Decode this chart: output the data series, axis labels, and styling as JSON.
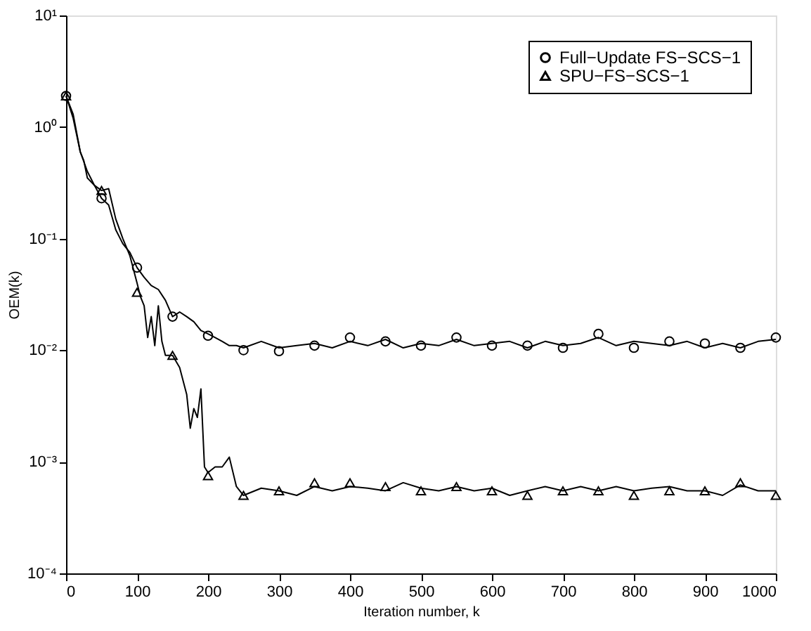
{
  "chart_data": {
    "type": "line",
    "xlabel": "Iteration number, k",
    "ylabel": "OEM(k)",
    "log": "y",
    "grid": false,
    "legend": "top right",
    "xlim": [
      0,
      1000
    ],
    "xticks": [
      0,
      100,
      200,
      300,
      400,
      500,
      600,
      700,
      800,
      900,
      1000
    ],
    "ylim": [
      0.0001,
      10
    ],
    "yticks": [
      {
        "value": 0.0001,
        "label": "10⁻⁴"
      },
      {
        "value": 0.001,
        "label": "10⁻³"
      },
      {
        "value": 0.01,
        "label": "10⁻²"
      },
      {
        "value": 0.1,
        "label": "10⁻¹"
      },
      {
        "value": 1,
        "label": "10⁰"
      },
      {
        "value": 10,
        "label": "10¹"
      }
    ],
    "series": [
      {
        "color": "#000000",
        "marker": "none",
        "x": [
          0,
          10,
          20,
          25,
          30,
          40,
          50,
          60,
          70,
          80,
          90,
          100,
          110,
          120,
          130,
          140,
          150,
          160,
          170,
          180,
          190,
          200,
          210,
          220,
          230,
          240,
          250,
          275,
          300,
          325,
          350,
          375,
          400,
          425,
          450,
          475,
          500,
          525,
          550,
          575,
          600,
          625,
          650,
          675,
          700,
          725,
          750,
          775,
          800,
          825,
          850,
          875,
          900,
          925,
          950,
          975,
          1000
        ],
        "values": [
          1.9,
          1.2,
          0.6,
          0.5,
          0.35,
          0.3,
          0.23,
          0.2,
          0.12,
          0.09,
          0.075,
          0.055,
          0.045,
          0.038,
          0.035,
          0.028,
          0.02,
          0.022,
          0.02,
          0.018,
          0.015,
          0.014,
          0.013,
          0.012,
          0.011,
          0.011,
          0.0105,
          0.012,
          0.0105,
          0.011,
          0.0115,
          0.0105,
          0.012,
          0.011,
          0.0125,
          0.0105,
          0.0115,
          0.011,
          0.0125,
          0.011,
          0.0115,
          0.012,
          0.0105,
          0.012,
          0.011,
          0.0115,
          0.013,
          0.011,
          0.012,
          0.0115,
          0.011,
          0.012,
          0.0105,
          0.0115,
          0.0105,
          0.012,
          0.0125
        ]
      },
      {
        "color": "#000000",
        "marker": "none",
        "x": [
          0,
          10,
          20,
          30,
          40,
          50,
          60,
          70,
          80,
          90,
          100,
          105,
          110,
          115,
          120,
          125,
          130,
          135,
          140,
          150,
          160,
          170,
          175,
          180,
          185,
          190,
          195,
          200,
          210,
          220,
          230,
          240,
          250,
          275,
          300,
          325,
          350,
          375,
          400,
          425,
          450,
          475,
          500,
          525,
          550,
          575,
          600,
          625,
          650,
          675,
          700,
          725,
          750,
          775,
          800,
          825,
          850,
          875,
          900,
          925,
          950,
          975,
          1000
        ],
        "values": [
          1.9,
          1.3,
          0.6,
          0.4,
          0.3,
          0.27,
          0.28,
          0.15,
          0.1,
          0.07,
          0.04,
          0.03,
          0.025,
          0.013,
          0.02,
          0.011,
          0.025,
          0.012,
          0.009,
          0.009,
          0.007,
          0.004,
          0.002,
          0.003,
          0.0025,
          0.0045,
          0.0009,
          0.0008,
          0.0009,
          0.0009,
          0.0011,
          0.0006,
          0.0005,
          0.00058,
          0.00055,
          0.0005,
          0.0006,
          0.00055,
          0.0006,
          0.00058,
          0.00055,
          0.00065,
          0.00058,
          0.00055,
          0.0006,
          0.00055,
          0.00058,
          0.0005,
          0.00055,
          0.0006,
          0.00055,
          0.0006,
          0.00055,
          0.0006,
          0.00055,
          0.00058,
          0.0006,
          0.00055,
          0.00055,
          0.0005,
          0.00062,
          0.00055,
          0.00055
        ]
      },
      {
        "type": "scatter",
        "name": "Full−Update FS−SCS−1",
        "color": "#000000",
        "marker": "circle",
        "x": [
          0,
          50,
          100,
          150,
          200,
          250,
          300,
          350,
          400,
          450,
          500,
          550,
          600,
          650,
          700,
          750,
          800,
          850,
          900,
          950,
          1000
        ],
        "values": [
          1.9,
          0.23,
          0.055,
          0.02,
          0.0135,
          0.01,
          0.0098,
          0.011,
          0.013,
          0.012,
          0.011,
          0.013,
          0.011,
          0.011,
          0.0105,
          0.014,
          0.0105,
          0.012,
          0.0115,
          0.0105,
          0.013
        ]
      },
      {
        "type": "scatter",
        "name": "SPU−FS−SCS−1",
        "color": "#000000",
        "marker": "triangle",
        "x": [
          0,
          50,
          100,
          150,
          200,
          250,
          300,
          350,
          400,
          450,
          500,
          550,
          600,
          650,
          700,
          750,
          800,
          850,
          900,
          950,
          1000
        ],
        "values": [
          1.9,
          0.27,
          0.033,
          0.009,
          0.00075,
          0.0005,
          0.00055,
          0.00065,
          0.00065,
          0.0006,
          0.00055,
          0.0006,
          0.00055,
          0.0005,
          0.00055,
          0.00055,
          0.0005,
          0.00055,
          0.00055,
          0.00065,
          0.0005
        ]
      }
    ]
  }
}
